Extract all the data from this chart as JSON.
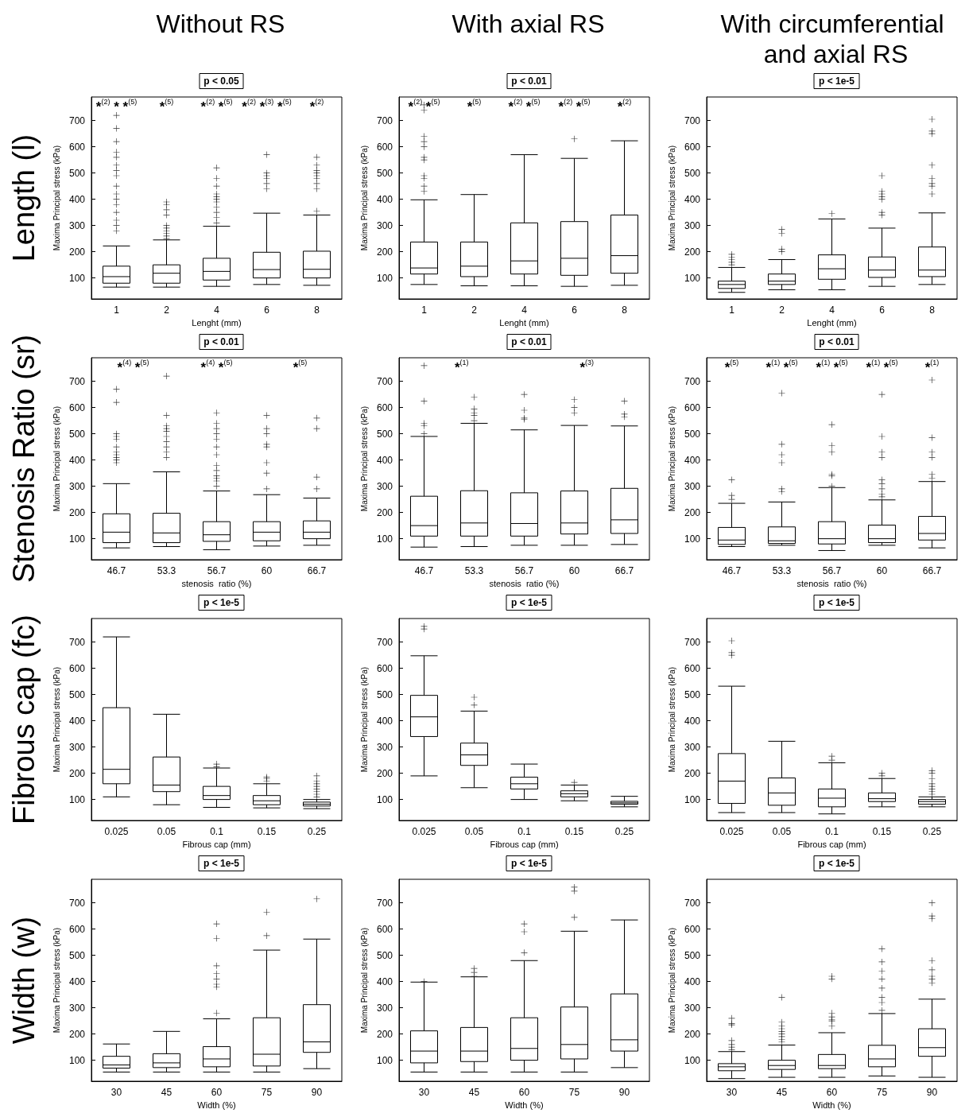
{
  "chart_data": [
    {
      "type": "box",
      "subtitle": "Without RS",
      "title": "p < 0.05",
      "xlabel": "Lenght (mm)",
      "ylabel": "Maxima Principal stress (kPa)",
      "categories": [
        "1",
        "2",
        "4",
        "6",
        "8"
      ],
      "ylim": [
        20,
        790
      ],
      "yticks": [
        100,
        200,
        300,
        400,
        500,
        600,
        700
      ],
      "series": [
        {
          "color": "#000000",
          "boxes": [
            {
              "low": 65,
              "q1": 80,
              "median": 105,
              "q3": 145,
              "high": 222,
              "outliers": [
                280,
                300,
                320,
                350,
                380,
                400,
                420,
                450,
                490,
                510,
                530,
                560,
                580,
                620,
                670,
                720
              ]
            },
            {
              "low": 65,
              "q1": 80,
              "median": 118,
              "q3": 150,
              "high": 245,
              "outliers": [
                250,
                260,
                270,
                280,
                290,
                300,
                340,
                360,
                380,
                390
              ]
            },
            {
              "low": 68,
              "q1": 92,
              "median": 125,
              "q3": 175,
              "high": 297,
              "outliers": [
                310,
                330,
                350,
                370,
                390,
                400,
                410,
                420,
                450,
                480,
                520
              ]
            },
            {
              "low": 75,
              "q1": 100,
              "median": 132,
              "q3": 198,
              "high": 347,
              "outliers": [
                440,
                460,
                480,
                490,
                500,
                570
              ]
            },
            {
              "low": 72,
              "q1": 100,
              "median": 133,
              "q3": 202,
              "high": 340,
              "outliers": [
                355,
                440,
                460,
                480,
                490,
                500,
                510,
                530,
                560
              ]
            }
          ]
        }
      ],
      "annotations": [
        "Length (l)",
        "*$^{(2)}$ * *$^{(5)}$",
        "*$^{(5)}$",
        "*$^{(2)}$ *$^{(5)}$",
        "*$^{(2)}$ *$^{(3)}$ *$^{(5)}$",
        "*$^{(2)}$"
      ]
    },
    {
      "type": "box",
      "subtitle": "With axial RS",
      "title": "p < 0.01",
      "xlabel": "Lenght (mm)",
      "ylabel": "Maxima Principal stress (kPa)",
      "categories": [
        "1",
        "2",
        "4",
        "6",
        "8"
      ],
      "ylim": [
        20,
        790
      ],
      "yticks": [
        100,
        200,
        300,
        400,
        500,
        600,
        700
      ],
      "series": [
        {
          "color": "#000000",
          "boxes": [
            {
              "low": 75,
              "q1": 115,
              "median": 138,
              "q3": 237,
              "high": 398,
              "outliers": [
                430,
                450,
                480,
                490,
                550,
                560,
                600,
                620,
                640,
                740,
                760
              ]
            },
            {
              "low": 70,
              "q1": 105,
              "median": 145,
              "q3": 237,
              "high": 418
            },
            {
              "low": 70,
              "q1": 115,
              "median": 165,
              "q3": 310,
              "high": 570
            },
            {
              "low": 68,
              "q1": 110,
              "median": 175,
              "q3": 315,
              "high": 556,
              "outliers": [
                630
              ]
            },
            {
              "low": 72,
              "q1": 118,
              "median": 185,
              "q3": 340,
              "high": 623
            }
          ]
        }
      ],
      "annotations": [
        "*$^{(2)}$ *$^{(5)}$",
        "*$^{(5)}$",
        "*$^{(2)}$ *$^{(5)}$",
        "*$^{(2)}$ *$^{(5)}$",
        "*$^{(2)}$"
      ]
    },
    {
      "type": "box",
      "subtitle": "With circumferential and axial RS",
      "title": "p < 1e-5",
      "xlabel": "Lenght (mm)",
      "ylabel": "Maxima Principal stress (kPa)",
      "categories": [
        "1",
        "2",
        "4",
        "6",
        "8"
      ],
      "ylim": [
        20,
        790
      ],
      "yticks": [
        100,
        200,
        300,
        400,
        500,
        600,
        700
      ],
      "series": [
        {
          "color": "#000000",
          "boxes": [
            {
              "low": 45,
              "q1": 60,
              "median": 75,
              "q3": 88,
              "high": 140,
              "outliers": [
                150,
                160,
                170,
                180,
                190
              ]
            },
            {
              "low": 55,
              "q1": 75,
              "median": 88,
              "q3": 115,
              "high": 170,
              "outliers": [
                200,
                210,
                270,
                285
              ]
            },
            {
              "low": 55,
              "q1": 95,
              "median": 135,
              "q3": 188,
              "high": 325,
              "outliers": [
                345
              ]
            },
            {
              "low": 68,
              "q1": 102,
              "median": 130,
              "q3": 180,
              "high": 290,
              "outliers": [
                340,
                350,
                400,
                410,
                420,
                430,
                490
              ]
            },
            {
              "low": 75,
              "q1": 105,
              "median": 130,
              "q3": 218,
              "high": 348,
              "outliers": [
                420,
                450,
                460,
                480,
                530,
                650,
                660,
                705
              ]
            }
          ]
        }
      ]
    },
    {
      "type": "box",
      "title": "p < 0.01",
      "xlabel": "stenosis  ratio (%)",
      "ylabel": "Maxima Principal stress (kPa)",
      "categories": [
        "46.7",
        "53.3",
        "56.7",
        "60",
        "66.7"
      ],
      "ylim": [
        20,
        790
      ],
      "yticks": [
        100,
        200,
        300,
        400,
        500,
        600,
        700
      ],
      "series": [
        {
          "color": "#000000",
          "boxes": [
            {
              "low": 65,
              "q1": 85,
              "median": 125,
              "q3": 195,
              "high": 310,
              "outliers": [
                390,
                400,
                410,
                420,
                430,
                450,
                480,
                490,
                500,
                620,
                670
              ]
            },
            {
              "low": 70,
              "q1": 85,
              "median": 122,
              "q3": 197,
              "high": 355,
              "outliers": [
                410,
                430,
                450,
                470,
                490,
                510,
                520,
                530,
                570,
                720
              ]
            },
            {
              "low": 58,
              "q1": 90,
              "median": 115,
              "q3": 165,
              "high": 282,
              "outliers": [
                300,
                320,
                330,
                340,
                360,
                380,
                420,
                450,
                480,
                500,
                520,
                540,
                580
              ]
            },
            {
              "low": 72,
              "q1": 92,
              "median": 125,
              "q3": 165,
              "high": 268,
              "outliers": [
                290,
                350,
                390,
                450,
                460,
                500,
                520,
                570
              ]
            },
            {
              "low": 75,
              "q1": 100,
              "median": 125,
              "q3": 168,
              "high": 255,
              "outliers": [
                290,
                335,
                520,
                560
              ]
            }
          ]
        }
      ],
      "annotations": [
        "Stenosis Ratio (sr)",
        "*$^{(4)}$ *$^{(5)}$",
        "*$^{(4)}$ *$^{(5)}$",
        "*$^{(5)}$"
      ]
    },
    {
      "type": "box",
      "title": "p < 0.01",
      "xlabel": "stenosis  ratio (%)",
      "ylabel": "Maxima Principal stress (kPa)",
      "categories": [
        "46.7",
        "53.3",
        "56.7",
        "60",
        "66.7"
      ],
      "ylim": [
        20,
        790
      ],
      "yticks": [
        100,
        200,
        300,
        400,
        500,
        600,
        700
      ],
      "series": [
        {
          "color": "#000000",
          "boxes": [
            {
              "low": 68,
              "q1": 110,
              "median": 150,
              "q3": 262,
              "high": 490,
              "outliers": [
                500,
                530,
                540,
                625,
                760
              ]
            },
            {
              "low": 70,
              "q1": 110,
              "median": 160,
              "q3": 283,
              "high": 540,
              "outliers": [
                550,
                570,
                580,
                595,
                640
              ]
            },
            {
              "low": 75,
              "q1": 110,
              "median": 158,
              "q3": 275,
              "high": 515,
              "outliers": [
                555,
                560,
                590,
                650
              ]
            },
            {
              "low": 75,
              "q1": 118,
              "median": 160,
              "q3": 282,
              "high": 532,
              "outliers": [
                580,
                600,
                630
              ]
            },
            {
              "low": 78,
              "q1": 120,
              "median": 172,
              "q3": 292,
              "high": 530,
              "outliers": [
                565,
                575,
                625
              ]
            }
          ]
        }
      ],
      "annotations": [
        "*$^{(1)}$",
        "*$^{(3)}$"
      ]
    },
    {
      "type": "box",
      "title": "p < 0.01",
      "xlabel": "stenosis  ratio (%)",
      "ylabel": "Maxima Principal stress (kPa)",
      "categories": [
        "46.7",
        "53.3",
        "56.7",
        "60",
        "66.7"
      ],
      "ylim": [
        20,
        790
      ],
      "yticks": [
        100,
        200,
        300,
        400,
        500,
        600,
        700
      ],
      "series": [
        {
          "color": "#000000",
          "boxes": [
            {
              "low": 70,
              "q1": 78,
              "median": 95,
              "q3": 143,
              "high": 235,
              "outliers": [
                250,
                265,
                325
              ]
            },
            {
              "low": 75,
              "q1": 82,
              "median": 92,
              "q3": 145,
              "high": 240,
              "outliers": [
                280,
                290,
                390,
                420,
                460,
                655
              ]
            },
            {
              "low": 55,
              "q1": 80,
              "median": 100,
              "q3": 165,
              "high": 295,
              "outliers": [
                300,
                340,
                345,
                430,
                455,
                535
              ]
            },
            {
              "low": 75,
              "q1": 85,
              "median": 100,
              "q3": 152,
              "high": 248,
              "outliers": [
                260,
                270,
                290,
                310,
                325,
                410,
                430,
                490,
                650
              ]
            },
            {
              "low": 65,
              "q1": 95,
              "median": 120,
              "q3": 185,
              "high": 318,
              "outliers": [
                330,
                345,
                410,
                430,
                485,
                705
              ]
            }
          ]
        }
      ],
      "annotations": [
        "*$^{(5)}$",
        "*$^{(1)}$ *$^{(5)}$",
        "*$^{(1)}$ *$^{(5)}$",
        "*$^{(1)}$ *$^{(5)}$",
        "*$^{(1)}$"
      ]
    },
    {
      "type": "box",
      "title": "p < 1e-5",
      "xlabel": "Fibrous cap (mm)",
      "ylabel": "Maxima Principal stress (kPa)",
      "categories": [
        "0.025",
        "0.05",
        "0.1",
        "0.15",
        "0.25"
      ],
      "ylim": [
        20,
        790
      ],
      "yticks": [
        100,
        200,
        300,
        400,
        500,
        600,
        700
      ],
      "series": [
        {
          "color": "#000000",
          "boxes": [
            {
              "low": 110,
              "q1": 160,
              "median": 215,
              "q3": 450,
              "high": 720
            },
            {
              "low": 80,
              "q1": 130,
              "median": 155,
              "q3": 262,
              "high": 425
            },
            {
              "low": 70,
              "q1": 100,
              "median": 115,
              "q3": 150,
              "high": 220,
              "outliers": [
                225,
                235
              ]
            },
            {
              "low": 68,
              "q1": 80,
              "median": 95,
              "q3": 115,
              "high": 160,
              "outliers": [
                170,
                180,
                185
              ]
            },
            {
              "low": 65,
              "q1": 75,
              "median": 82,
              "q3": 90,
              "high": 100,
              "outliers": [
                110,
                120,
                130,
                140,
                150,
                160,
                170,
                190
              ]
            }
          ]
        }
      ],
      "annotations": [
        "Fibrous cap (fc)"
      ]
    },
    {
      "type": "box",
      "title": "p < 1e-5",
      "xlabel": "Fibrous cap (mm)",
      "ylabel": "Maxima Principal stress (kPa)",
      "categories": [
        "0.025",
        "0.05",
        "0.1",
        "0.15",
        "0.25"
      ],
      "ylim": [
        20,
        790
      ],
      "yticks": [
        100,
        200,
        300,
        400,
        500,
        600,
        700
      ],
      "series": [
        {
          "color": "#000000",
          "boxes": [
            {
              "low": 190,
              "q1": 340,
              "median": 415,
              "q3": 497,
              "high": 648,
              "outliers": [
                750,
                760
              ]
            },
            {
              "low": 145,
              "q1": 230,
              "median": 270,
              "q3": 315,
              "high": 437,
              "outliers": [
                460,
                490
              ]
            },
            {
              "low": 100,
              "q1": 140,
              "median": 160,
              "q3": 185,
              "high": 235
            },
            {
              "low": 95,
              "q1": 110,
              "median": 122,
              "q3": 133,
              "high": 155,
              "outliers": [
                165
              ]
            },
            {
              "low": 72,
              "q1": 82,
              "median": 87,
              "q3": 93,
              "high": 112
            }
          ]
        }
      ]
    },
    {
      "type": "box",
      "title": "p < 1e-5",
      "xlabel": "Fibrous cap (mm)",
      "ylabel": "Maxima Principal stress (kPa)",
      "categories": [
        "0.025",
        "0.05",
        "0.1",
        "0.15",
        "0.25"
      ],
      "ylim": [
        20,
        790
      ],
      "yticks": [
        100,
        200,
        300,
        400,
        500,
        600,
        700
      ],
      "series": [
        {
          "color": "#000000",
          "boxes": [
            {
              "low": 50,
              "q1": 85,
              "median": 170,
              "q3": 275,
              "high": 532,
              "outliers": [
                650,
                660,
                705
              ]
            },
            {
              "low": 50,
              "q1": 78,
              "median": 125,
              "q3": 182,
              "high": 322
            },
            {
              "low": 45,
              "q1": 72,
              "median": 105,
              "q3": 140,
              "high": 240,
              "outliers": [
                250,
                265
              ]
            },
            {
              "low": 72,
              "q1": 92,
              "median": 103,
              "q3": 125,
              "high": 180,
              "outliers": [
                190,
                200
              ]
            },
            {
              "low": 72,
              "q1": 82,
              "median": 92,
              "q3": 100,
              "high": 110,
              "outliers": [
                120,
                130,
                140,
                150,
                160,
                180,
                200,
                210
              ]
            }
          ]
        }
      ]
    },
    {
      "type": "box",
      "title": "p < 1e-5",
      "xlabel": "Width (%)",
      "ylabel": "Maxima Principal stress (kPa)",
      "categories": [
        "30",
        "45",
        "60",
        "75",
        "90"
      ],
      "ylim": [
        20,
        790
      ],
      "yticks": [
        100,
        200,
        300,
        400,
        500,
        600,
        700
      ],
      "series": [
        {
          "color": "#000000",
          "boxes": [
            {
              "low": 55,
              "q1": 70,
              "median": 82,
              "q3": 115,
              "high": 162
            },
            {
              "low": 55,
              "q1": 72,
              "median": 90,
              "q3": 125,
              "high": 210
            },
            {
              "low": 55,
              "q1": 75,
              "median": 105,
              "q3": 152,
              "high": 258,
              "outliers": [
                280,
                380,
                390,
                410,
                430,
                460,
                565,
                620
              ]
            },
            {
              "low": 55,
              "q1": 78,
              "median": 123,
              "q3": 262,
              "high": 520,
              "outliers": [
                575,
                665
              ]
            },
            {
              "low": 68,
              "q1": 130,
              "median": 170,
              "q3": 312,
              "high": 562,
              "outliers": [
                715
              ]
            }
          ]
        }
      ],
      "annotations": [
        "Width (w)"
      ]
    },
    {
      "type": "box",
      "title": "p < 1e-5",
      "xlabel": "Width (%)",
      "ylabel": "Maxima Principal stress (kPa)",
      "categories": [
        "30",
        "45",
        "60",
        "75",
        "90"
      ],
      "ylim": [
        20,
        790
      ],
      "yticks": [
        100,
        200,
        300,
        400,
        500,
        600,
        700
      ],
      "series": [
        {
          "color": "#000000",
          "boxes": [
            {
              "low": 55,
              "q1": 90,
              "median": 135,
              "q3": 212,
              "high": 398,
              "outliers": [
                400
              ]
            },
            {
              "low": 55,
              "q1": 95,
              "median": 135,
              "q3": 225,
              "high": 418,
              "outliers": [
                420,
                435,
                450
              ]
            },
            {
              "low": 55,
              "q1": 100,
              "median": 145,
              "q3": 262,
              "high": 480,
              "outliers": [
                510,
                590,
                620
              ]
            },
            {
              "low": 55,
              "q1": 105,
              "median": 160,
              "q3": 303,
              "high": 592,
              "outliers": [
                645,
                745,
                760
              ]
            },
            {
              "low": 72,
              "q1": 135,
              "median": 178,
              "q3": 353,
              "high": 635
            }
          ]
        }
      ]
    },
    {
      "type": "box",
      "title": "p < 1e-5",
      "xlabel": "Width (%)",
      "ylabel": "Maxima Principal stress (kPa)",
      "categories": [
        "30",
        "45",
        "60",
        "75",
        "90"
      ],
      "ylim": [
        20,
        790
      ],
      "yticks": [
        100,
        200,
        300,
        400,
        500,
        600,
        700
      ],
      "series": [
        {
          "color": "#000000",
          "boxes": [
            {
              "low": 30,
              "q1": 60,
              "median": 75,
              "q3": 87,
              "high": 133,
              "outliers": [
                140,
                150,
                160,
                175,
                235,
                240,
                260
              ]
            },
            {
              "low": 35,
              "q1": 65,
              "median": 80,
              "q3": 100,
              "high": 158,
              "outliers": [
                170,
                180,
                190,
                200,
                210,
                220,
                230,
                245,
                340
              ]
            },
            {
              "low": 35,
              "q1": 68,
              "median": 80,
              "q3": 122,
              "high": 205,
              "outliers": [
                230,
                250,
                255,
                265,
                280,
                410,
                420
              ]
            },
            {
              "low": 40,
              "q1": 75,
              "median": 105,
              "q3": 157,
              "high": 278,
              "outliers": [
                290,
                320,
                340,
                375,
                410,
                440,
                475,
                525
              ]
            },
            {
              "low": 35,
              "q1": 115,
              "median": 148,
              "q3": 220,
              "high": 333,
              "outliers": [
                395,
                410,
                420,
                445,
                480,
                640,
                650,
                700
              ]
            }
          ]
        }
      ]
    }
  ]
}
